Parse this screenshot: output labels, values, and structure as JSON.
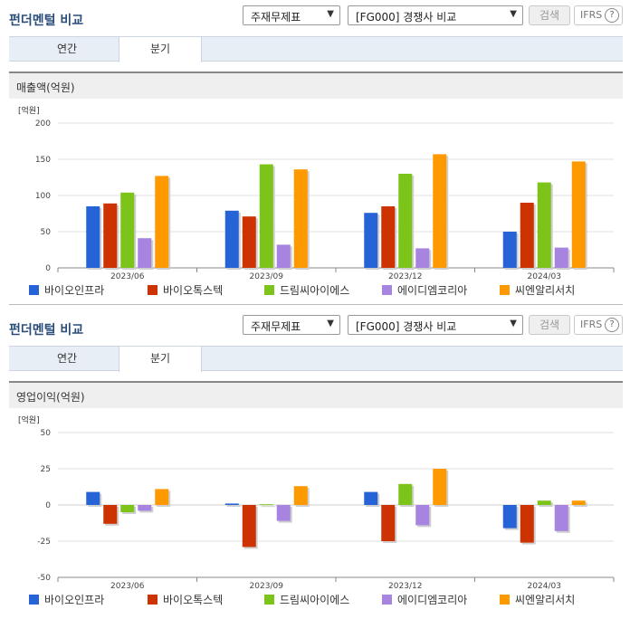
{
  "sections": [
    {
      "title": "펀더멘털 비교",
      "select1": "주재무제표",
      "select2": "[FG000] 경쟁사 비교",
      "search_label": "검색",
      "ifrs_label": "IFRS",
      "help": "?",
      "tabs": [
        {
          "label": "연간"
        },
        {
          "label": "분기"
        }
      ],
      "active_tab": 1,
      "chart_title": "매출액(억원)",
      "unit": "[억원]"
    },
    {
      "title": "펀더멘털 비교",
      "select1": "주재무제표",
      "select2": "[FG000] 경쟁사 비교",
      "search_label": "검색",
      "ifrs_label": "IFRS",
      "help": "?",
      "tabs": [
        {
          "label": "연간"
        },
        {
          "label": "분기"
        }
      ],
      "active_tab": 1,
      "chart_title": "영업이익(억원)",
      "unit": "[억원]"
    }
  ],
  "chart_data": [
    {
      "type": "bar",
      "title": "매출액(억원)",
      "ylabel": "[억원]",
      "categories": [
        "2023/06",
        "2023/09",
        "2023/12",
        "2024/03"
      ],
      "ylim": [
        0,
        200
      ],
      "yticks": [
        0,
        50,
        100,
        150,
        200
      ],
      "legend_position": "bottom",
      "series": [
        {
          "name": "바이오인프라",
          "color": "#2563d6",
          "values": [
            85,
            79,
            76,
            50
          ]
        },
        {
          "name": "바이오톡스텍",
          "color": "#cc3300",
          "values": [
            89,
            71,
            85,
            90
          ]
        },
        {
          "name": "드림씨아이에스",
          "color": "#7cc41a",
          "values": [
            104,
            143,
            130,
            118
          ]
        },
        {
          "name": "에이디엠코리아",
          "color": "#a784df",
          "values": [
            41,
            32,
            27,
            28
          ]
        },
        {
          "name": "씨엔알리서치",
          "color": "#ff9900",
          "values": [
            127,
            136,
            157,
            147
          ]
        }
      ]
    },
    {
      "type": "bar",
      "title": "영업이익(억원)",
      "ylabel": "[억원]",
      "categories": [
        "2023/06",
        "2023/09",
        "2023/12",
        "2024/03"
      ],
      "ylim": [
        -50,
        50
      ],
      "yticks": [
        -50,
        -25,
        0,
        25,
        50
      ],
      "legend_position": "bottom",
      "series": [
        {
          "name": "바이오인프라",
          "color": "#2563d6",
          "values": [
            9,
            1,
            9,
            -16
          ]
        },
        {
          "name": "바이오톡스텍",
          "color": "#cc3300",
          "values": [
            -13,
            -29,
            -25,
            -26
          ]
        },
        {
          "name": "드림씨아이에스",
          "color": "#7cc41a",
          "values": [
            -5,
            0.5,
            14.5,
            3
          ]
        },
        {
          "name": "에이디엠코리아",
          "color": "#a784df",
          "values": [
            -4,
            -11,
            -14,
            -18
          ]
        },
        {
          "name": "씨엔알리서치",
          "color": "#ff9900",
          "values": [
            11,
            13,
            25,
            3
          ]
        }
      ]
    }
  ]
}
